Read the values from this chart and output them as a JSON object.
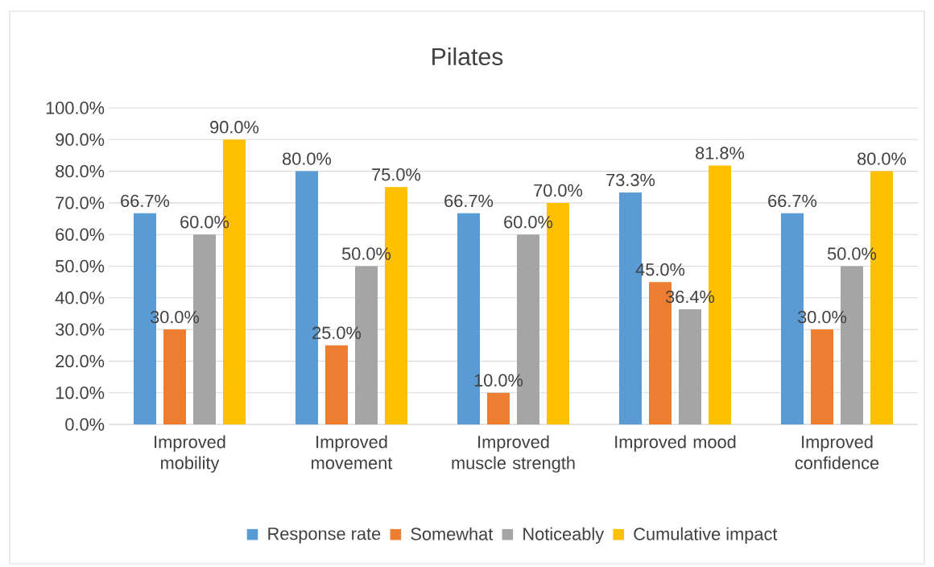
{
  "chart_data": {
    "type": "bar",
    "title": "Pilates",
    "categories": [
      "Improved mobility",
      "Improved movement",
      "Improved muscle strength",
      "Improved mood",
      "Improved confidence"
    ],
    "series": [
      {
        "name": "Response rate",
        "color": "#5b9bd5",
        "values": [
          66.7,
          80.0,
          66.7,
          73.3,
          66.7
        ],
        "value_labels": [
          "66.7%",
          "80.0%",
          "66.7%",
          "73.3%",
          "66.7%"
        ]
      },
      {
        "name": "Somewhat",
        "color": "#ed7d31",
        "values": [
          30.0,
          25.0,
          10.0,
          45.0,
          30.0
        ],
        "value_labels": [
          "30.0%",
          "25.0%",
          "10.0%",
          "45.0%",
          "30.0%"
        ]
      },
      {
        "name": "Noticeably",
        "color": "#a5a5a5",
        "values": [
          60.0,
          50.0,
          60.0,
          36.4,
          50.0
        ],
        "value_labels": [
          "60.0%",
          "50.0%",
          "60.0%",
          "36.4%",
          "50.0%"
        ]
      },
      {
        "name": "Cumulative impact",
        "color": "#ffc000",
        "values": [
          90.0,
          75.0,
          70.0,
          81.8,
          80.0
        ],
        "value_labels": [
          "90.0%",
          "75.0%",
          "70.0%",
          "81.8%",
          "80.0%"
        ]
      }
    ],
    "ylim": [
      0,
      100
    ],
    "yticks": [
      {
        "value": 0,
        "label": "0.0%"
      },
      {
        "value": 10,
        "label": "10.0%"
      },
      {
        "value": 20,
        "label": "20.0%"
      },
      {
        "value": 30,
        "label": "30.0%"
      },
      {
        "value": 40,
        "label": "40.0%"
      },
      {
        "value": 50,
        "label": "50.0%"
      },
      {
        "value": 60,
        "label": "60.0%"
      },
      {
        "value": 70,
        "label": "70.0%"
      },
      {
        "value": 80,
        "label": "80.0%"
      },
      {
        "value": 90,
        "label": "90.0%"
      },
      {
        "value": 100,
        "label": "100.0%"
      }
    ],
    "grid": "y",
    "legend": "bottom"
  }
}
